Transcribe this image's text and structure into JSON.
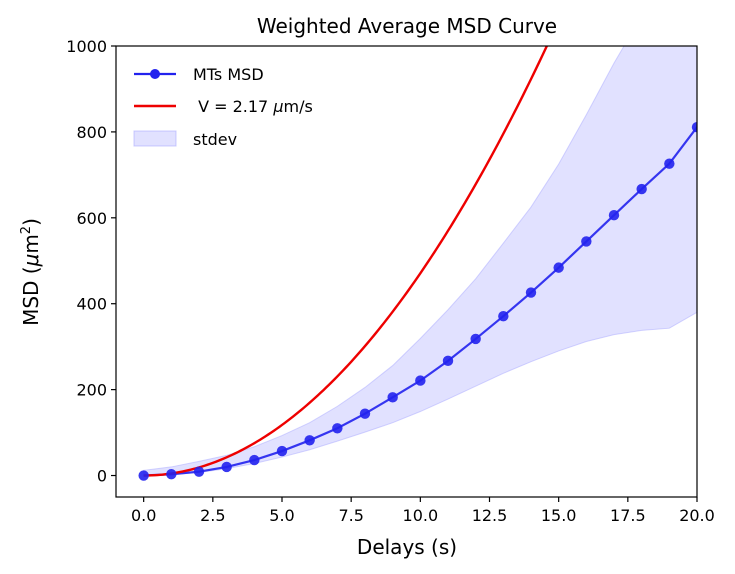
{
  "chart_data": {
    "type": "line",
    "title": "Weighted Average MSD Curve",
    "xlabel": "Delays (s)",
    "ylabel_main": "MSD (",
    "ylabel_mu": "μ",
    "ylabel_unit": "m",
    "ylabel_sup": "2",
    "ylabel_close": ")",
    "xlim": [
      -1,
      20
    ],
    "ylim": [
      -50,
      1000
    ],
    "xticks": [
      0,
      2.5,
      5,
      7.5,
      10,
      12.5,
      15,
      17.5,
      20
    ],
    "xtick_labels": [
      "0.0",
      "2.5",
      "5.0",
      "7.5",
      "10.0",
      "12.5",
      "15.0",
      "17.5",
      "20.0"
    ],
    "yticks": [
      0,
      200,
      400,
      600,
      800,
      1000
    ],
    "ytick_labels": [
      "0",
      "200",
      "400",
      "600",
      "800",
      "1000"
    ],
    "grid": false,
    "legend_position": "top-left",
    "series": [
      {
        "name": "MTs MSD",
        "kind": "line-markers",
        "color": "#2222ee",
        "x": [
          0,
          1,
          2,
          3,
          4,
          5,
          6,
          7,
          8,
          9,
          10,
          11,
          12,
          13,
          14,
          15,
          16,
          17,
          18,
          19,
          20
        ],
        "y": [
          0,
          3,
          9,
          20,
          36,
          57,
          82,
          110,
          144,
          182,
          221,
          267,
          318,
          371,
          426,
          484,
          545,
          606,
          667,
          726,
          811
        ]
      },
      {
        "name": " V = 2.17 ",
        "name_mu": "μ",
        "name_unit": "m/s",
        "kind": "fit-curve",
        "color": "#ee0000",
        "velocity": 2.17,
        "x_range": [
          0,
          20
        ]
      },
      {
        "name": "stdev",
        "kind": "band",
        "color": "#aaaaff",
        "x": [
          0,
          1,
          2,
          3,
          4,
          5,
          6,
          7,
          8,
          9,
          10,
          11,
          12,
          13,
          14,
          15,
          16,
          17,
          18,
          19,
          20
        ],
        "upper": [
          12,
          20,
          33,
          47,
          67,
          93,
          123,
          161,
          205,
          256,
          319,
          386,
          458,
          541,
          625,
          725,
          840,
          960,
          1070,
          1130,
          1200
        ],
        "lower": [
          0,
          2,
          7,
          16,
          28,
          43,
          60,
          80,
          101,
          123,
          149,
          178,
          208,
          238,
          265,
          290,
          312,
          328,
          338,
          343,
          380
        ]
      }
    ]
  }
}
